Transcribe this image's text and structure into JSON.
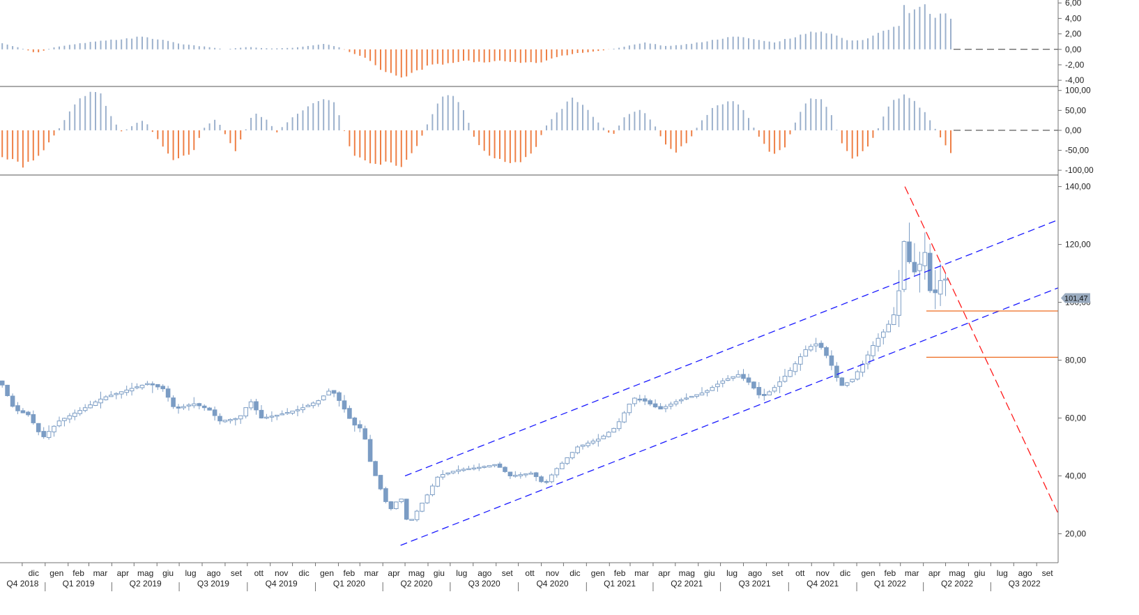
{
  "chart_data": {
    "type": "candlestick",
    "colors": {
      "candle": "#7b9cc4",
      "osc_positive": "#9bb0cc",
      "osc_negative": "#ee7f45",
      "channel": "#1a1aff",
      "downtrend": "#ff1a1a",
      "support": "#ee6a1e",
      "axis": "#707070",
      "badge": "#9aabbf"
    },
    "x_axis": {
      "start": "2018-11-01",
      "end": "2022-09-30",
      "month_labels": [
        {
          "date": "2018-12-01",
          "label": "dic"
        },
        {
          "date": "2019-01-01",
          "label": "gen"
        },
        {
          "date": "2019-02-01",
          "label": "feb"
        },
        {
          "date": "2019-03-01",
          "label": "mar"
        },
        {
          "date": "2019-04-01",
          "label": "apr"
        },
        {
          "date": "2019-05-01",
          "label": "mag"
        },
        {
          "date": "2019-06-01",
          "label": "giu"
        },
        {
          "date": "2019-07-01",
          "label": "lug"
        },
        {
          "date": "2019-08-01",
          "label": "ago"
        },
        {
          "date": "2019-09-01",
          "label": "set"
        },
        {
          "date": "2019-10-01",
          "label": "ott"
        },
        {
          "date": "2019-11-01",
          "label": "nov"
        },
        {
          "date": "2019-12-01",
          "label": "dic"
        },
        {
          "date": "2020-01-01",
          "label": "gen"
        },
        {
          "date": "2020-02-01",
          "label": "feb"
        },
        {
          "date": "2020-03-01",
          "label": "mar"
        },
        {
          "date": "2020-04-01",
          "label": "apr"
        },
        {
          "date": "2020-05-01",
          "label": "mag"
        },
        {
          "date": "2020-06-01",
          "label": "giu"
        },
        {
          "date": "2020-07-01",
          "label": "lug"
        },
        {
          "date": "2020-08-01",
          "label": "ago"
        },
        {
          "date": "2020-09-01",
          "label": "set"
        },
        {
          "date": "2020-10-01",
          "label": "ott"
        },
        {
          "date": "2020-11-01",
          "label": "nov"
        },
        {
          "date": "2020-12-01",
          "label": "dic"
        },
        {
          "date": "2021-01-01",
          "label": "gen"
        },
        {
          "date": "2021-02-01",
          "label": "feb"
        },
        {
          "date": "2021-03-01",
          "label": "mar"
        },
        {
          "date": "2021-04-01",
          "label": "apr"
        },
        {
          "date": "2021-05-01",
          "label": "mag"
        },
        {
          "date": "2021-06-01",
          "label": "giu"
        },
        {
          "date": "2021-07-01",
          "label": "lug"
        },
        {
          "date": "2021-08-01",
          "label": "ago"
        },
        {
          "date": "2021-09-01",
          "label": "set"
        },
        {
          "date": "2021-10-01",
          "label": "ott"
        },
        {
          "date": "2021-11-01",
          "label": "nov"
        },
        {
          "date": "2021-12-01",
          "label": "dic"
        },
        {
          "date": "2022-01-01",
          "label": "gen"
        },
        {
          "date": "2022-02-01",
          "label": "feb"
        },
        {
          "date": "2022-03-01",
          "label": "mar"
        },
        {
          "date": "2022-04-01",
          "label": "apr"
        },
        {
          "date": "2022-05-01",
          "label": "mag"
        },
        {
          "date": "2022-06-01",
          "label": "giu"
        },
        {
          "date": "2022-07-01",
          "label": "lug"
        },
        {
          "date": "2022-08-01",
          "label": "ago"
        },
        {
          "date": "2022-09-01",
          "label": "set"
        }
      ],
      "quarter_labels": [
        {
          "date": "2018-10-01",
          "label": "Q4 2018"
        },
        {
          "date": "2019-01-01",
          "label": "Q1 2019"
        },
        {
          "date": "2019-04-01",
          "label": "Q2 2019"
        },
        {
          "date": "2019-07-01",
          "label": "Q3 2019"
        },
        {
          "date": "2019-10-01",
          "label": "Q4 2019"
        },
        {
          "date": "2020-01-01",
          "label": "Q1 2020"
        },
        {
          "date": "2020-04-01",
          "label": "Q2 2020"
        },
        {
          "date": "2020-07-01",
          "label": "Q3 2020"
        },
        {
          "date": "2020-10-01",
          "label": "Q4 2020"
        },
        {
          "date": "2021-01-01",
          "label": "Q1 2021"
        },
        {
          "date": "2021-04-01",
          "label": "Q2 2021"
        },
        {
          "date": "2021-07-01",
          "label": "Q3 2021"
        },
        {
          "date": "2021-10-01",
          "label": "Q4 2021"
        },
        {
          "date": "2022-01-01",
          "label": "Q1 2022"
        },
        {
          "date": "2022-04-01",
          "label": "Q2 2022"
        },
        {
          "date": "2022-07-01",
          "label": "Q3 2022"
        }
      ]
    },
    "price_panel": {
      "ylim": [
        10,
        144
      ],
      "ticks": [
        {
          "v": 140,
          "label": "140,00"
        },
        {
          "v": 120,
          "label": "120,00"
        },
        {
          "v": 100,
          "label": "100,00"
        },
        {
          "v": 80,
          "label": "80,00"
        },
        {
          "v": 60,
          "label": "60,00"
        },
        {
          "v": 40,
          "label": "40,00"
        },
        {
          "v": 20,
          "label": "20,00"
        }
      ],
      "last_price": 101.47,
      "last_price_label": "101,47",
      "keypoints": [
        [
          "2018-11-01",
          73
        ],
        [
          "2018-11-20",
          63
        ],
        [
          "2018-12-10",
          61
        ],
        [
          "2018-12-28",
          53
        ],
        [
          "2019-01-20",
          59
        ],
        [
          "2019-02-20",
          63
        ],
        [
          "2019-03-20",
          67
        ],
        [
          "2019-04-25",
          70
        ],
        [
          "2019-05-20",
          72
        ],
        [
          "2019-06-10",
          70
        ],
        [
          "2019-06-25",
          63
        ],
        [
          "2019-07-20",
          65
        ],
        [
          "2019-08-10",
          63
        ],
        [
          "2019-08-25",
          59
        ],
        [
          "2019-09-20",
          60
        ],
        [
          "2019-10-05",
          66
        ],
        [
          "2019-10-20",
          60
        ],
        [
          "2019-11-10",
          61
        ],
        [
          "2019-12-10",
          63
        ],
        [
          "2020-01-05",
          66
        ],
        [
          "2020-01-22",
          70
        ],
        [
          "2020-02-05",
          65
        ],
        [
          "2020-02-20",
          58
        ],
        [
          "2020-03-05",
          56
        ],
        [
          "2020-03-15",
          45
        ],
        [
          "2020-03-25",
          38
        ],
        [
          "2020-04-10",
          28
        ],
        [
          "2020-04-25",
          33
        ],
        [
          "2020-05-05",
          23
        ],
        [
          "2020-05-15",
          27
        ],
        [
          "2020-05-30",
          33
        ],
        [
          "2020-06-15",
          40
        ],
        [
          "2020-07-10",
          42
        ],
        [
          "2020-08-10",
          43
        ],
        [
          "2020-09-01",
          44
        ],
        [
          "2020-09-20",
          40
        ],
        [
          "2020-10-20",
          41
        ],
        [
          "2020-11-05",
          37
        ],
        [
          "2020-11-20",
          42
        ],
        [
          "2020-12-20",
          50
        ],
        [
          "2021-01-20",
          53
        ],
        [
          "2021-02-10",
          57
        ],
        [
          "2021-03-05",
          67
        ],
        [
          "2021-03-20",
          66
        ],
        [
          "2021-04-10",
          63
        ],
        [
          "2021-05-05",
          66
        ],
        [
          "2021-06-10",
          69
        ],
        [
          "2021-07-05",
          73
        ],
        [
          "2021-07-25",
          75
        ],
        [
          "2021-08-10",
          72
        ],
        [
          "2021-08-25",
          67
        ],
        [
          "2021-09-10",
          70
        ],
        [
          "2021-10-05",
          77
        ],
        [
          "2021-10-25",
          84
        ],
        [
          "2021-11-10",
          86
        ],
        [
          "2021-11-25",
          80
        ],
        [
          "2021-12-10",
          71
        ],
        [
          "2021-12-25",
          73
        ],
        [
          "2022-01-10",
          79
        ],
        [
          "2022-01-25",
          86
        ],
        [
          "2022-02-10",
          91
        ],
        [
          "2022-02-25",
          98
        ],
        [
          "2022-03-02",
          113
        ],
        [
          "2022-03-07",
          123
        ],
        [
          "2022-03-15",
          111
        ],
        [
          "2022-03-25",
          110
        ],
        [
          "2022-04-01",
          121
        ],
        [
          "2022-04-10",
          104
        ],
        [
          "2022-04-20",
          103
        ],
        [
          "2022-04-28",
          112
        ],
        [
          "2022-05-06",
          101.47
        ]
      ],
      "channel_upper": [
        [
          "2020-05-01",
          40
        ],
        [
          "2022-09-30",
          128.5
        ]
      ],
      "channel_lower": [
        [
          "2020-04-25",
          16
        ],
        [
          "2022-09-30",
          105
        ]
      ],
      "downtrend": [
        [
          "2022-03-07",
          140
        ],
        [
          "2022-09-30",
          27
        ]
      ],
      "support_levels": [
        {
          "value": 97,
          "from": "2022-04-05",
          "to": "2022-09-30"
        },
        {
          "value": 81,
          "from": "2022-04-05",
          "to": "2022-09-30"
        }
      ]
    },
    "osc1_panel": {
      "ylim": [
        -4.8,
        6.2
      ],
      "ticks": [
        {
          "v": 6,
          "label": "6,00"
        },
        {
          "v": 4,
          "label": "4,00"
        },
        {
          "v": 2,
          "label": "2,00"
        },
        {
          "v": 0,
          "label": "0,00"
        },
        {
          "v": -2,
          "label": "-2,00"
        },
        {
          "v": -4,
          "label": "-4,00"
        }
      ],
      "keypoints": [
        [
          "2018-11-01",
          0.8
        ],
        [
          "2018-11-25",
          0.3
        ],
        [
          "2018-12-20",
          -0.5
        ],
        [
          "2019-01-10",
          0.2
        ],
        [
          "2019-02-20",
          0.8
        ],
        [
          "2019-04-01",
          1.2
        ],
        [
          "2019-05-10",
          1.6
        ],
        [
          "2019-06-10",
          1.2
        ],
        [
          "2019-07-10",
          0.6
        ],
        [
          "2019-08-10",
          0.3
        ],
        [
          "2019-09-01",
          0.0
        ],
        [
          "2019-10-01",
          0.3
        ],
        [
          "2019-11-01",
          0.1
        ],
        [
          "2019-12-01",
          0.2
        ],
        [
          "2020-01-15",
          0.7
        ],
        [
          "2020-02-01",
          0.3
        ],
        [
          "2020-02-15",
          -0.3
        ],
        [
          "2020-03-10",
          -1.2
        ],
        [
          "2020-04-05",
          -3.0
        ],
        [
          "2020-05-01",
          -3.6
        ],
        [
          "2020-06-01",
          -2.2
        ],
        [
          "2020-07-15",
          -1.5
        ],
        [
          "2020-08-15",
          -1.6
        ],
        [
          "2020-09-15",
          -1.5
        ],
        [
          "2020-10-15",
          -1.8
        ],
        [
          "2020-11-01",
          -1.6
        ],
        [
          "2020-11-20",
          -1.0
        ],
        [
          "2020-12-20",
          -0.5
        ],
        [
          "2021-01-20",
          -0.2
        ],
        [
          "2021-02-20",
          0.3
        ],
        [
          "2021-03-20",
          0.9
        ],
        [
          "2021-04-20",
          0.4
        ],
        [
          "2021-05-20",
          0.7
        ],
        [
          "2021-06-20",
          1.2
        ],
        [
          "2021-07-20",
          1.7
        ],
        [
          "2021-08-20",
          1.2
        ],
        [
          "2021-09-10",
          0.9
        ],
        [
          "2021-10-10",
          1.6
        ],
        [
          "2021-11-05",
          2.3
        ],
        [
          "2021-11-25",
          2.2
        ],
        [
          "2021-12-15",
          1.3
        ],
        [
          "2022-01-05",
          1.1
        ],
        [
          "2022-01-20",
          1.6
        ],
        [
          "2022-02-10",
          2.5
        ],
        [
          "2022-02-28",
          3.2
        ],
        [
          "2022-03-05",
          5.8
        ],
        [
          "2022-03-15",
          4.3
        ],
        [
          "2022-03-25",
          5.5
        ],
        [
          "2022-04-01",
          6.0
        ],
        [
          "2022-04-10",
          4.4
        ],
        [
          "2022-04-20",
          4.3
        ],
        [
          "2022-05-01",
          4.7
        ],
        [
          "2022-05-10",
          3.7
        ]
      ]
    },
    "osc2_panel": {
      "ylim": [
        -112,
        110
      ],
      "ticks": [
        {
          "v": 100,
          "label": "100,00"
        },
        {
          "v": 50,
          "label": "50,00"
        },
        {
          "v": 0,
          "label": "0,00"
        },
        {
          "v": -50,
          "label": "-50,00"
        },
        {
          "v": -100,
          "label": "-100,00"
        }
      ],
      "keypoints": [
        [
          "2018-11-01",
          -60
        ],
        [
          "2018-12-01",
          -90
        ],
        [
          "2018-12-20",
          -75
        ],
        [
          "2019-01-10",
          -20
        ],
        [
          "2019-01-20",
          5
        ],
        [
          "2019-02-10",
          65
        ],
        [
          "2019-02-25",
          90
        ],
        [
          "2019-03-15",
          95
        ],
        [
          "2019-04-01",
          30
        ],
        [
          "2019-04-15",
          -5
        ],
        [
          "2019-05-01",
          15
        ],
        [
          "2019-05-15",
          25
        ],
        [
          "2019-06-01",
          -20
        ],
        [
          "2019-06-25",
          -80
        ],
        [
          "2019-07-20",
          -50
        ],
        [
          "2019-08-05",
          10
        ],
        [
          "2019-08-20",
          30
        ],
        [
          "2019-09-01",
          -10
        ],
        [
          "2019-09-15",
          -50
        ],
        [
          "2019-10-01",
          10
        ],
        [
          "2019-10-10",
          45
        ],
        [
          "2019-10-25",
          30
        ],
        [
          "2019-11-10",
          -5
        ],
        [
          "2019-12-05",
          40
        ],
        [
          "2020-01-01",
          70
        ],
        [
          "2020-01-25",
          80
        ],
        [
          "2020-02-05",
          20
        ],
        [
          "2020-02-20",
          -60
        ],
        [
          "2020-03-15",
          -85
        ],
        [
          "2020-04-05",
          -80
        ],
        [
          "2020-04-25",
          -90
        ],
        [
          "2020-05-15",
          -50
        ],
        [
          "2020-06-01",
          20
        ],
        [
          "2020-06-15",
          75
        ],
        [
          "2020-07-01",
          90
        ],
        [
          "2020-07-20",
          50
        ],
        [
          "2020-08-05",
          -30
        ],
        [
          "2020-09-01",
          -75
        ],
        [
          "2020-10-01",
          -80
        ],
        [
          "2020-10-20",
          -60
        ],
        [
          "2020-11-05",
          5
        ],
        [
          "2020-11-25",
          50
        ],
        [
          "2020-12-15",
          85
        ],
        [
          "2021-01-05",
          45
        ],
        [
          "2021-01-25",
          5
        ],
        [
          "2021-02-05",
          -15
        ],
        [
          "2021-02-20",
          30
        ],
        [
          "2021-03-15",
          55
        ],
        [
          "2021-04-01",
          20
        ],
        [
          "2021-04-15",
          -30
        ],
        [
          "2021-05-01",
          -55
        ],
        [
          "2021-05-20",
          -25
        ],
        [
          "2021-06-05",
          25
        ],
        [
          "2021-06-25",
          65
        ],
        [
          "2021-07-20",
          75
        ],
        [
          "2021-08-05",
          40
        ],
        [
          "2021-08-20",
          -10
        ],
        [
          "2021-09-10",
          -65
        ],
        [
          "2021-09-25",
          -45
        ],
        [
          "2021-10-10",
          20
        ],
        [
          "2021-10-25",
          70
        ],
        [
          "2021-11-10",
          85
        ],
        [
          "2021-11-25",
          55
        ],
        [
          "2021-12-10",
          -25
        ],
        [
          "2021-12-25",
          -75
        ],
        [
          "2022-01-15",
          -45
        ],
        [
          "2022-01-30",
          5
        ],
        [
          "2022-02-15",
          70
        ],
        [
          "2022-03-05",
          90
        ],
        [
          "2022-03-20",
          70
        ],
        [
          "2022-04-01",
          50
        ],
        [
          "2022-04-15",
          10
        ],
        [
          "2022-04-25",
          -20
        ],
        [
          "2022-05-05",
          -50
        ],
        [
          "2022-05-12",
          -65
        ]
      ]
    }
  }
}
